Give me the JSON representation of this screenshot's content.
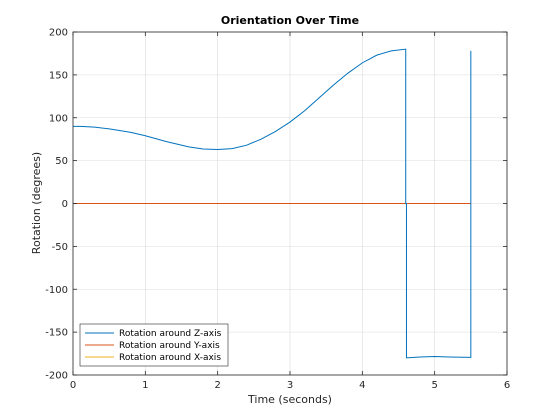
{
  "chart_data": {
    "type": "line",
    "title": "Orientation Over Time",
    "xlabel": "Time (seconds)",
    "ylabel": "Rotation (degrees)",
    "xlim": [
      0,
      6
    ],
    "ylim": [
      -200,
      200
    ],
    "xticks": [
      0,
      1,
      2,
      3,
      4,
      5,
      6
    ],
    "yticks": [
      -200,
      -150,
      -100,
      -50,
      0,
      50,
      100,
      150,
      200
    ],
    "grid": true,
    "legend_position": "bottom-left",
    "series": [
      {
        "name": "Rotation around Z-axis",
        "color": "#0072BD",
        "x": [
          0,
          0.1,
          0.3,
          0.5,
          0.8,
          1.0,
          1.3,
          1.6,
          1.8,
          2.0,
          2.2,
          2.4,
          2.6,
          2.8,
          3.0,
          3.2,
          3.4,
          3.6,
          3.8,
          4.0,
          4.2,
          4.4,
          4.6,
          4.6,
          4.61,
          4.61,
          4.8,
          5.0,
          5.2,
          5.5,
          5.5
        ],
        "y": [
          90,
          90,
          89,
          87,
          83,
          79,
          72,
          66,
          63.5,
          63,
          64,
          68,
          75,
          84,
          95,
          108,
          123,
          138,
          152,
          164,
          173,
          178,
          180,
          0,
          0,
          -180,
          -179,
          -178.5,
          -179,
          -179.5,
          178
        ]
      },
      {
        "name": "Rotation around Y-axis",
        "color": "#D95319",
        "x": [
          0,
          4.6,
          4.61,
          5.5
        ],
        "y": [
          0,
          0,
          0,
          0
        ]
      },
      {
        "name": "Rotation around X-axis",
        "color": "#EDB120",
        "x": [
          0,
          5.5
        ],
        "y": [
          0,
          0
        ]
      }
    ]
  }
}
